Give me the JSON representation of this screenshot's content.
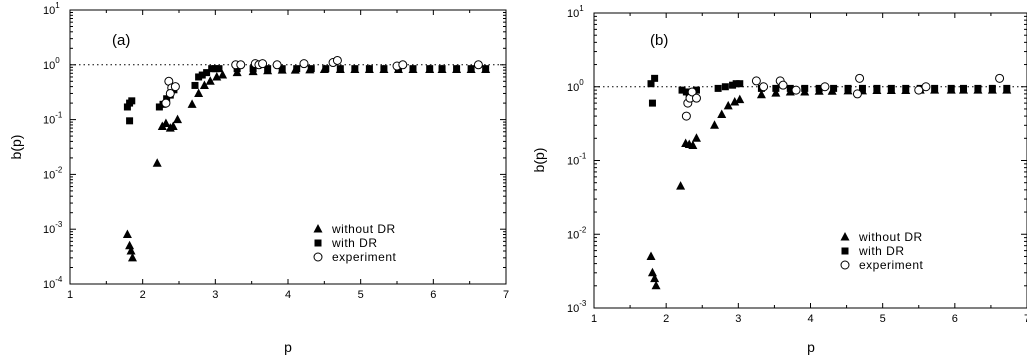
{
  "chart_data": [
    {
      "type": "scatter",
      "panel_label": "(a)",
      "xlabel": "p",
      "ylabel": "b(p)",
      "xlim": [
        1,
        7
      ],
      "ylim": [
        0.0001,
        10
      ],
      "yscale": "log",
      "x_ticks": [
        "1",
        "2",
        "3",
        "4",
        "5",
        "6",
        "7"
      ],
      "y_ticks": [
        {
          "value": 0.0001,
          "base": "10",
          "exp": "-4"
        },
        {
          "value": 0.001,
          "base": "10",
          "exp": "-3"
        },
        {
          "value": 0.01,
          "base": "10",
          "exp": "-2"
        },
        {
          "value": 0.1,
          "base": "10",
          "exp": "-1"
        },
        {
          "value": 1,
          "base": "10",
          "exp": "0"
        },
        {
          "value": 10,
          "base": "10",
          "exp": "1"
        }
      ],
      "reference_line": {
        "y": 1,
        "style": "dotted"
      },
      "legend_position": "bottom-right",
      "series": [
        {
          "name": "without DR",
          "marker": "triangle",
          "points": [
            [
              1.79,
              0.0008
            ],
            [
              1.82,
              0.0005
            ],
            [
              1.84,
              0.0004
            ],
            [
              1.86,
              0.0003
            ],
            [
              2.2,
              0.016
            ],
            [
              2.27,
              0.075
            ],
            [
              2.32,
              0.085
            ],
            [
              2.38,
              0.07
            ],
            [
              2.42,
              0.075
            ],
            [
              2.48,
              0.1
            ],
            [
              2.68,
              0.19
            ],
            [
              2.77,
              0.3
            ],
            [
              2.85,
              0.42
            ],
            [
              2.93,
              0.5
            ],
            [
              3.02,
              0.6
            ],
            [
              3.1,
              0.65
            ],
            [
              3.3,
              0.72
            ],
            [
              3.52,
              0.75
            ],
            [
              3.72,
              0.78
            ],
            [
              3.92,
              0.8
            ],
            [
              4.1,
              0.8
            ],
            [
              4.3,
              0.81
            ],
            [
              4.5,
              0.82
            ],
            [
              4.72,
              0.82
            ],
            [
              4.92,
              0.82
            ],
            [
              5.12,
              0.82
            ],
            [
              5.32,
              0.82
            ],
            [
              5.52,
              0.82
            ],
            [
              5.72,
              0.82
            ],
            [
              5.95,
              0.82
            ],
            [
              6.12,
              0.82
            ],
            [
              6.32,
              0.82
            ],
            [
              6.52,
              0.82
            ],
            [
              6.72,
              0.82
            ]
          ]
        },
        {
          "name": "with DR",
          "marker": "square",
          "points": [
            [
              1.79,
              0.17
            ],
            [
              1.82,
              0.2
            ],
            [
              1.85,
              0.22
            ],
            [
              1.82,
              0.095
            ],
            [
              2.23,
              0.17
            ],
            [
              2.28,
              0.19
            ],
            [
              2.33,
              0.24
            ],
            [
              2.38,
              0.28
            ],
            [
              2.43,
              0.35
            ],
            [
              2.72,
              0.42
            ],
            [
              2.77,
              0.6
            ],
            [
              2.82,
              0.65
            ],
            [
              2.88,
              0.72
            ],
            [
              2.95,
              0.85
            ],
            [
              3.0,
              0.85
            ],
            [
              3.05,
              0.85
            ],
            [
              3.3,
              0.85
            ],
            [
              3.52,
              0.85
            ],
            [
              3.72,
              0.85
            ],
            [
              3.92,
              0.85
            ],
            [
              4.12,
              0.85
            ],
            [
              4.32,
              0.85
            ],
            [
              4.52,
              0.85
            ],
            [
              4.72,
              0.85
            ],
            [
              4.92,
              0.85
            ],
            [
              5.12,
              0.85
            ],
            [
              5.32,
              0.85
            ],
            [
              5.52,
              0.85
            ],
            [
              5.72,
              0.85
            ],
            [
              5.95,
              0.85
            ],
            [
              6.12,
              0.85
            ],
            [
              6.32,
              0.85
            ],
            [
              6.52,
              0.85
            ],
            [
              6.72,
              0.85
            ]
          ]
        },
        {
          "name": "experiment",
          "marker": "circle",
          "points": [
            [
              2.32,
              0.2
            ],
            [
              2.36,
              0.5
            ],
            [
              2.4,
              0.38
            ],
            [
              2.45,
              0.4
            ],
            [
              2.38,
              0.3
            ],
            [
              3.28,
              1.0
            ],
            [
              3.35,
              1.0
            ],
            [
              3.55,
              1.05
            ],
            [
              3.6,
              1.0
            ],
            [
              3.65,
              1.05
            ],
            [
              3.85,
              1.0
            ],
            [
              4.22,
              1.05
            ],
            [
              4.62,
              1.1
            ],
            [
              4.68,
              1.2
            ],
            [
              5.5,
              0.95
            ],
            [
              5.58,
              1.0
            ],
            [
              6.62,
              1.0
            ]
          ]
        }
      ]
    },
    {
      "type": "scatter",
      "panel_label": "(b)",
      "xlabel": "p",
      "ylabel": "b(p)",
      "xlim": [
        1,
        7
      ],
      "ylim": [
        0.001,
        10
      ],
      "yscale": "log",
      "x_ticks": [
        "1",
        "2",
        "3",
        "4",
        "5",
        "6",
        "7"
      ],
      "y_ticks": [
        {
          "value": 0.001,
          "base": "10",
          "exp": "-3"
        },
        {
          "value": 0.01,
          "base": "10",
          "exp": "-2"
        },
        {
          "value": 0.1,
          "base": "10",
          "exp": "-1"
        },
        {
          "value": 1,
          "base": "10",
          "exp": "0"
        },
        {
          "value": 10,
          "base": "10",
          "exp": "1"
        }
      ],
      "reference_line": {
        "y": 1,
        "style": "dotted"
      },
      "legend_position": "bottom-right",
      "series": [
        {
          "name": "without DR",
          "marker": "triangle",
          "points": [
            [
              1.79,
              0.005
            ],
            [
              1.81,
              0.003
            ],
            [
              1.84,
              0.0025
            ],
            [
              1.86,
              0.002
            ],
            [
              2.2,
              0.045
            ],
            [
              2.27,
              0.17
            ],
            [
              2.32,
              0.165
            ],
            [
              2.37,
              0.16
            ],
            [
              2.42,
              0.2
            ],
            [
              2.67,
              0.3
            ],
            [
              2.77,
              0.42
            ],
            [
              2.86,
              0.55
            ],
            [
              2.95,
              0.62
            ],
            [
              3.02,
              0.67
            ],
            [
              3.32,
              0.78
            ],
            [
              3.52,
              0.82
            ],
            [
              3.72,
              0.85
            ],
            [
              3.92,
              0.85
            ],
            [
              4.12,
              0.87
            ],
            [
              4.3,
              0.87
            ],
            [
              4.52,
              0.88
            ],
            [
              4.72,
              0.88
            ],
            [
              4.92,
              0.89
            ],
            [
              5.12,
              0.89
            ],
            [
              5.32,
              0.89
            ],
            [
              5.52,
              0.9
            ],
            [
              5.72,
              0.9
            ],
            [
              5.95,
              0.9
            ],
            [
              6.12,
              0.9
            ],
            [
              6.32,
              0.9
            ],
            [
              6.52,
              0.9
            ],
            [
              6.72,
              0.9
            ]
          ]
        },
        {
          "name": "with DR",
          "marker": "square",
          "points": [
            [
              1.79,
              1.1
            ],
            [
              1.81,
              0.6
            ],
            [
              1.84,
              1.3
            ],
            [
              2.22,
              0.9
            ],
            [
              2.28,
              0.85
            ],
            [
              2.32,
              0.8
            ],
            [
              2.37,
              0.85
            ],
            [
              2.42,
              0.9
            ],
            [
              2.72,
              0.95
            ],
            [
              2.82,
              1.0
            ],
            [
              2.92,
              1.05
            ],
            [
              2.97,
              1.1
            ],
            [
              3.02,
              1.1
            ],
            [
              3.32,
              0.95
            ],
            [
              3.52,
              0.95
            ],
            [
              3.72,
              0.95
            ],
            [
              3.92,
              0.95
            ],
            [
              4.12,
              0.95
            ],
            [
              4.32,
              0.95
            ],
            [
              4.52,
              0.95
            ],
            [
              4.72,
              0.95
            ],
            [
              4.92,
              0.95
            ],
            [
              5.12,
              0.95
            ],
            [
              5.32,
              0.95
            ],
            [
              5.52,
              0.95
            ],
            [
              5.72,
              0.95
            ],
            [
              5.95,
              0.95
            ],
            [
              6.12,
              0.95
            ],
            [
              6.32,
              0.95
            ],
            [
              6.52,
              0.95
            ],
            [
              6.72,
              0.95
            ]
          ]
        },
        {
          "name": "experiment",
          "marker": "circle",
          "points": [
            [
              2.28,
              0.4
            ],
            [
              2.3,
              0.6
            ],
            [
              2.33,
              0.7
            ],
            [
              2.36,
              0.85
            ],
            [
              2.42,
              0.7
            ],
            [
              3.25,
              1.2
            ],
            [
              3.35,
              1.0
            ],
            [
              3.58,
              1.2
            ],
            [
              3.62,
              1.05
            ],
            [
              3.8,
              0.9
            ],
            [
              4.2,
              1.0
            ],
            [
              4.65,
              0.8
            ],
            [
              4.68,
              1.3
            ],
            [
              5.5,
              0.9
            ],
            [
              5.6,
              1.0
            ],
            [
              6.62,
              1.3
            ]
          ]
        }
      ]
    }
  ]
}
